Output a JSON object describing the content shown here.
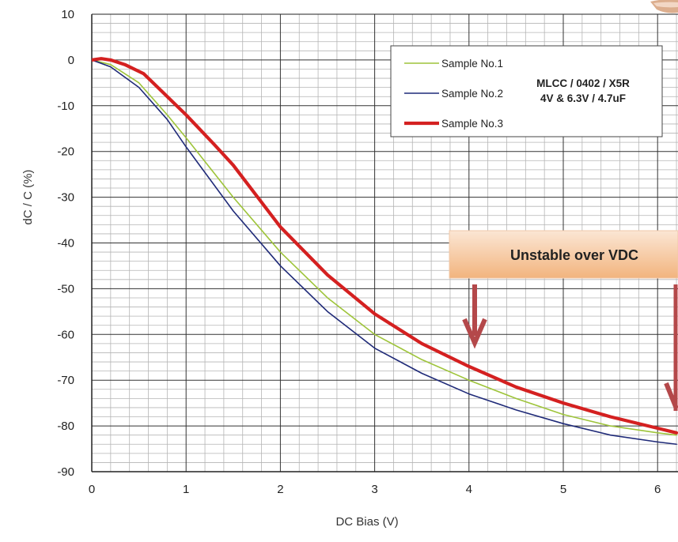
{
  "chart_data": {
    "type": "line",
    "xlabel": "DC Bias (V)",
    "ylabel": "dC / C (%)",
    "xlim": [
      0,
      6
    ],
    "ylim": [
      -90,
      10
    ],
    "xticks": [
      "0",
      "1",
      "2",
      "3",
      "4",
      "5",
      "6"
    ],
    "yticks": [
      "10",
      "0",
      "-10",
      "-20",
      "-30",
      "-40",
      "-50",
      "-60",
      "-70",
      "-80",
      "-90"
    ],
    "grid": true,
    "legend_position": "top-right",
    "legend_note": [
      "MLCC  / 0402 / X5R",
      "4V & 6.3V / 4.7uF"
    ],
    "annotation": "Unstable over VDC",
    "series": [
      {
        "name": "Sample No.1",
        "color": "#9ec43a",
        "x": [
          0,
          0.2,
          0.5,
          0.8,
          1.0,
          1.5,
          2.0,
          2.5,
          3.0,
          3.5,
          4.0,
          4.5,
          5.0,
          5.5,
          6.0,
          6.2
        ],
        "y": [
          0,
          -1,
          -5,
          -12,
          -17,
          -30,
          -42,
          -52,
          -60,
          -65.5,
          -70,
          -74,
          -77.5,
          -80,
          -81.5,
          -82
        ]
      },
      {
        "name": "Sample No.2",
        "color": "#1f2a78",
        "x": [
          0,
          0.2,
          0.5,
          0.8,
          1.0,
          1.5,
          2.0,
          2.5,
          3.0,
          3.5,
          4.0,
          4.5,
          5.0,
          5.5,
          6.0,
          6.2
        ],
        "y": [
          0,
          -1.5,
          -6,
          -13,
          -19,
          -33,
          -45,
          -55,
          -63,
          -68.5,
          -73,
          -76.5,
          -79.5,
          -82,
          -83.5,
          -84
        ]
      },
      {
        "name": "Sample No.3",
        "color": "#d42020",
        "x": [
          0,
          0.1,
          0.2,
          0.35,
          0.55,
          0.75,
          1.0,
          1.3,
          1.5,
          2.0,
          2.5,
          3.0,
          3.5,
          4.0,
          4.5,
          5.0,
          5.5,
          6.0,
          6.2
        ],
        "y": [
          0,
          0.3,
          0,
          -1,
          -3,
          -7,
          -12,
          -18.5,
          -23,
          -36.5,
          -47,
          -55.5,
          -62,
          -67,
          -71.5,
          -75,
          -78,
          -80.5,
          -81.5
        ]
      }
    ]
  },
  "colors": {
    "grid_major": "#333333",
    "grid_minor": "#b5b5b5",
    "callout_top": "#fbe6d4",
    "callout_bottom": "#f2b47e",
    "arrow": "#b4484a"
  }
}
